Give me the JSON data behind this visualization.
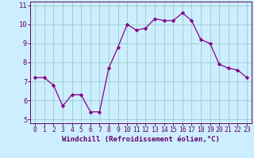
{
  "x": [
    0,
    1,
    2,
    3,
    4,
    5,
    6,
    7,
    8,
    9,
    10,
    11,
    12,
    13,
    14,
    15,
    16,
    17,
    18,
    19,
    20,
    21,
    22,
    23
  ],
  "y": [
    7.2,
    7.2,
    6.8,
    5.7,
    6.3,
    6.3,
    5.4,
    5.4,
    7.7,
    8.8,
    10.0,
    9.7,
    9.8,
    10.3,
    10.2,
    10.2,
    10.6,
    10.2,
    9.2,
    9.0,
    7.9,
    7.7,
    7.6,
    7.2
  ],
  "line_color": "#880088",
  "marker": "D",
  "marker_size": 2.2,
  "bg_color": "#cceeff",
  "grid_color": "#99cccc",
  "xlabel": "Windchill (Refroidissement éolien,°C)",
  "xlim": [
    -0.5,
    23.5
  ],
  "ylim": [
    4.8,
    11.2
  ],
  "yticks": [
    5,
    6,
    7,
    8,
    9,
    10,
    11
  ],
  "xtick_labels": [
    "0",
    "1",
    "2",
    "3",
    "4",
    "5",
    "6",
    "7",
    "8",
    "9",
    "10",
    "11",
    "12",
    "13",
    "14",
    "15",
    "16",
    "17",
    "18",
    "19",
    "20",
    "21",
    "22",
    "23"
  ],
  "label_color": "#660066",
  "tick_color": "#660066",
  "label_fontsize": 6.5,
  "tick_fontsize": 5.8
}
